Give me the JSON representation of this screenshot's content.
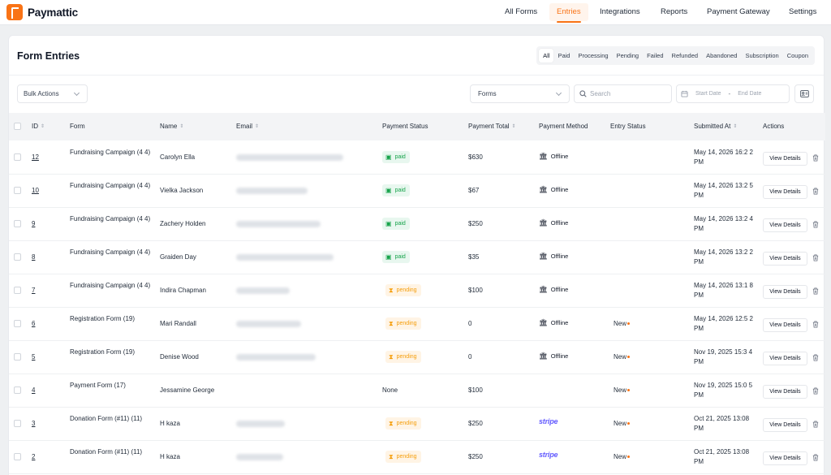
{
  "app": {
    "name": "Paymattic"
  },
  "nav": [
    {
      "label": "All Forms",
      "active": false
    },
    {
      "label": "Entries",
      "active": true
    },
    {
      "label": "Integrations",
      "active": false
    },
    {
      "label": "Reports",
      "active": false
    },
    {
      "label": "Payment Gateway",
      "active": false
    },
    {
      "label": "Settings",
      "active": false
    }
  ],
  "page": {
    "title": "Form Entries"
  },
  "status_tabs": [
    "All",
    "Paid",
    "Processing",
    "Pending",
    "Failed",
    "Refunded",
    "Abandoned",
    "Subscription",
    "Coupon"
  ],
  "active_status_tab": "All",
  "toolbar": {
    "bulk_actions": "Bulk Actions",
    "forms_select": "Forms",
    "search_placeholder": "Search",
    "start_date_placeholder": "Start Date",
    "date_separator": "-",
    "end_date_placeholder": "End Date"
  },
  "table": {
    "headers": {
      "id": "ID",
      "form": "Form",
      "name": "Name",
      "email": "Email",
      "payment_status": "Payment Status",
      "payment_total": "Payment Total",
      "payment_method": "Payment Method",
      "entry_status": "Entry Status",
      "submitted_at": "Submitted At",
      "actions": "Actions"
    },
    "action_label": "View Details",
    "rows": [
      {
        "id": "12",
        "form": "Fundraising Campaign (4 4)",
        "name": "Carolyn Ella",
        "status": "paid",
        "total": "$630",
        "method": "Offline",
        "entry_status": "",
        "submitted": "May 14, 2026 16:2 2 PM"
      },
      {
        "id": "10",
        "form": "Fundraising Campaign (4 4)",
        "name": "Vielka Jackson",
        "status": "paid",
        "total": "$67",
        "method": "Offline",
        "entry_status": "",
        "submitted": "May 14, 2026 13:2 5 PM"
      },
      {
        "id": "9",
        "form": "Fundraising Campaign (4 4)",
        "name": "Zachery Holden",
        "status": "paid",
        "total": "$250",
        "method": "Offline",
        "entry_status": "",
        "submitted": "May 14, 2026 13:2 4 PM"
      },
      {
        "id": "8",
        "form": "Fundraising Campaign (4 4)",
        "name": "Graiden Day",
        "status": "paid",
        "total": "$35",
        "method": "Offline",
        "entry_status": "",
        "submitted": "May 14, 2026 13:2 2 PM"
      },
      {
        "id": "7",
        "form": "Fundraising Campaign (4 4)",
        "name": "Indira Chapman",
        "status": "pending",
        "total": "$100",
        "method": "Offline",
        "entry_status": "",
        "submitted": "May 14, 2026 13:1 8 PM"
      },
      {
        "id": "6",
        "form": "Registration Form (19)",
        "name": "Mari Randall",
        "status": "pending",
        "total": "0",
        "method": "Offline",
        "entry_status": "New",
        "submitted": "May 14, 2026 12:5 2 PM"
      },
      {
        "id": "5",
        "form": "Registration Form (19)",
        "name": "Denise Wood",
        "status": "pending",
        "total": "0",
        "method": "Offline",
        "entry_status": "New",
        "submitted": "Nov 19, 2025 15:3 4 PM"
      },
      {
        "id": "4",
        "form": "Payment Form (17)",
        "name": "Jessamine George",
        "status": "None",
        "total": "$100",
        "method": "",
        "entry_status": "New",
        "submitted": "Nov 19, 2025 15:0 5 PM"
      },
      {
        "id": "3",
        "form": "Donation Form (#11) (11)",
        "name": "H kaza",
        "status": "pending",
        "total": "$250",
        "method": "stripe",
        "entry_status": "New",
        "submitted": "Oct 21, 2025 13:08 PM"
      },
      {
        "id": "2",
        "form": "Donation Form (#11) (11)",
        "name": "H kaza",
        "status": "pending",
        "total": "$250",
        "method": "stripe",
        "entry_status": "New",
        "submitted": "Oct 21, 2025 13:08 PM"
      }
    ]
  },
  "colors": {
    "accent": "#f97316",
    "paid": "#16a34a",
    "pending": "#f59e0b",
    "stripe": "#635bff"
  }
}
